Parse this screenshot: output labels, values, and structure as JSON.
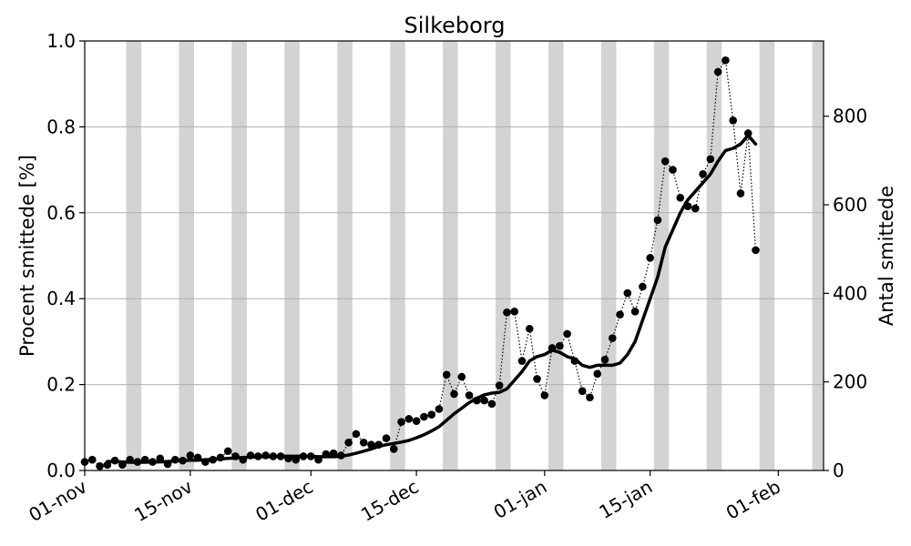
{
  "chart_data": {
    "type": "line",
    "title": "Silkeborg",
    "ylabel": "Procent smittede [%]",
    "y2label": "Antal smittede",
    "x_tick_labels": [
      "01-nov",
      "15-nov",
      "01-dec",
      "15-dec",
      "01-jan",
      "15-jan",
      "01-feb"
    ],
    "x_tick_day_index": [
      0,
      14,
      30,
      44,
      61,
      75,
      92
    ],
    "y_ticks": [
      "0.0",
      "0.2",
      "0.4",
      "0.6",
      "0.8",
      "1.0"
    ],
    "y2_ticks": [
      "0",
      "200",
      "400",
      "600",
      "800"
    ],
    "ylim": [
      0,
      1.0
    ],
    "y2_per_percent": 970,
    "xlim_days": [
      0,
      98
    ],
    "weekend_shading": true,
    "grid": "horizontal",
    "shading_color": "#d3d3d3",
    "series": [
      {
        "style": "dotted-markers",
        "values": [
          0.02,
          0.025,
          0.01,
          0.013,
          0.023,
          0.013,
          0.025,
          0.02,
          0.025,
          0.02,
          0.028,
          0.015,
          0.025,
          0.023,
          0.035,
          0.03,
          0.02,
          0.025,
          0.03,
          0.045,
          0.033,
          0.025,
          0.035,
          0.033,
          0.035,
          0.033,
          0.033,
          0.028,
          0.025,
          0.033,
          0.033,
          0.025,
          0.038,
          0.04,
          0.035,
          0.065,
          0.085,
          0.065,
          0.06,
          0.06,
          0.075,
          0.05,
          0.113,
          0.12,
          0.115,
          0.125,
          0.13,
          0.143,
          0.223,
          0.178,
          0.218,
          0.175,
          0.163,
          0.163,
          0.155,
          0.198,
          0.368,
          0.37,
          0.255,
          0.33,
          0.213,
          0.175,
          0.285,
          0.29,
          0.318,
          0.255,
          0.185,
          0.17,
          0.225,
          0.258,
          0.308,
          0.363,
          0.413,
          0.37,
          0.428,
          0.495,
          0.583,
          0.72,
          0.7,
          0.635,
          0.615,
          0.61,
          0.69,
          0.725,
          0.928,
          0.955,
          0.815,
          0.645,
          0.785,
          0.513
        ]
      },
      {
        "style": "rolling-average",
        "values": [
          0.021,
          0.021,
          0.02,
          0.019,
          0.019,
          0.019,
          0.02,
          0.02,
          0.021,
          0.022,
          0.023,
          0.024,
          0.024,
          0.025,
          0.026,
          0.027,
          0.028,
          0.029,
          0.03,
          0.031,
          0.032,
          0.032,
          0.032,
          0.033,
          0.033,
          0.033,
          0.033,
          0.033,
          0.032,
          0.032,
          0.032,
          0.033,
          0.036,
          0.04,
          0.045,
          0.05,
          0.056,
          0.06,
          0.063,
          0.066,
          0.07,
          0.076,
          0.083,
          0.092,
          0.102,
          0.117,
          0.132,
          0.145,
          0.158,
          0.168,
          0.176,
          0.18,
          0.182,
          0.19,
          0.21,
          0.23,
          0.255,
          0.265,
          0.27,
          0.28,
          0.275,
          0.265,
          0.26,
          0.245,
          0.24,
          0.245,
          0.245,
          0.245,
          0.25,
          0.27,
          0.3,
          0.35,
          0.4,
          0.45,
          0.52,
          0.56,
          0.6,
          0.63,
          0.65,
          0.67,
          0.69,
          0.72,
          0.745,
          0.75,
          0.76,
          0.78,
          0.76
        ]
      }
    ]
  }
}
